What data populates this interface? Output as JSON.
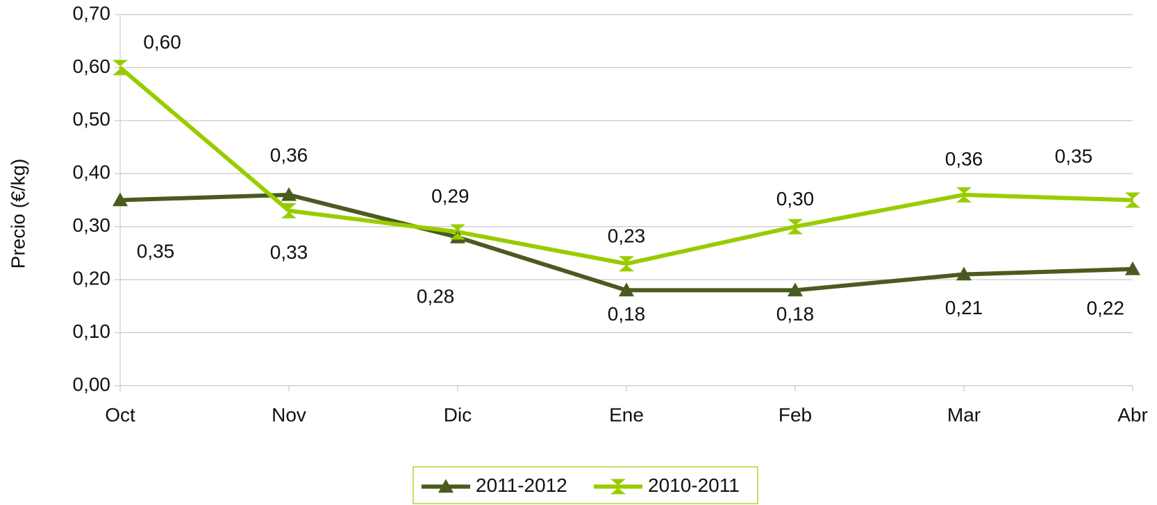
{
  "chart_data": {
    "type": "line",
    "y_label": "Precio (€/kg)",
    "categories": [
      "Oct",
      "Nov",
      "Dic",
      "Ene",
      "Feb",
      "Mar",
      "Abr"
    ],
    "series": [
      {
        "name": "2011-2012",
        "color": "#4b5a1f",
        "marker": "triangle",
        "values": [
          0.35,
          0.36,
          0.28,
          0.18,
          0.18,
          0.21,
          0.22
        ],
        "value_labels": [
          "0,35",
          "0,36",
          "0,28",
          "0,18",
          "0,18",
          "0,21",
          "0,22"
        ]
      },
      {
        "name": "2010-2011",
        "color": "#99cc00",
        "marker": "hourglass",
        "values": [
          0.6,
          0.33,
          0.29,
          0.23,
          0.3,
          0.36,
          0.35
        ],
        "value_labels": [
          "0,60",
          "0,33",
          "0,29",
          "0,23",
          "0,30",
          "0,36",
          "0,35"
        ]
      }
    ],
    "ylim": [
      0,
      0.7
    ],
    "yticks": [
      {
        "value": 0,
        "label": "0,00"
      },
      {
        "value": 0.1,
        "label": "0,10"
      },
      {
        "value": 0.2,
        "label": "0,20"
      },
      {
        "value": 0.3,
        "label": "0,30"
      },
      {
        "value": 0.4,
        "label": "0,40"
      },
      {
        "value": 0.5,
        "label": "0,50"
      },
      {
        "value": 0.6,
        "label": "0,60"
      },
      {
        "value": 0.7,
        "label": "0,70"
      }
    ],
    "grid": true,
    "legend": "bottom"
  }
}
